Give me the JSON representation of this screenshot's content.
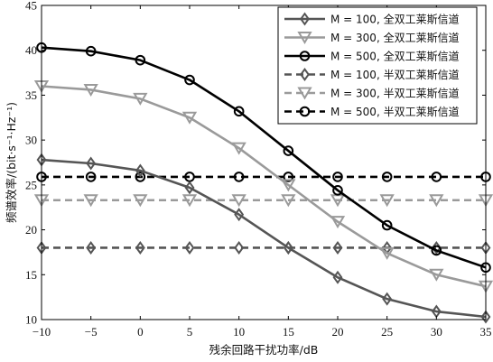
{
  "chart_data": {
    "type": "line",
    "xlabel": "残余回路干扰功率/dB",
    "ylabel": "频谱效率/(bit·s⁻¹·Hz⁻¹)",
    "xlim": [
      -10,
      35
    ],
    "ylim": [
      10,
      45
    ],
    "xticks": [
      "−10",
      "−5",
      "0",
      "5",
      "10",
      "15",
      "20",
      "25",
      "30",
      "35"
    ],
    "yticks": [
      "10",
      "15",
      "20",
      "25",
      "30",
      "35",
      "40",
      "45"
    ],
    "grid": false,
    "legend_position": "top-right",
    "x": [
      -10,
      -5,
      0,
      5,
      10,
      15,
      20,
      25,
      30,
      35
    ],
    "series": [
      {
        "name": "M = 100, 全双工莱斯信道",
        "color": "#555555",
        "dash": "solid",
        "marker": "diamond",
        "values": [
          27.8,
          27.4,
          26.6,
          24.7,
          21.7,
          18.0,
          14.7,
          12.3,
          10.9,
          10.3
        ]
      },
      {
        "name": "M = 300, 全双工莱斯信道",
        "color": "#9a9a9a",
        "dash": "solid",
        "marker": "triangle-down",
        "values": [
          36.0,
          35.6,
          34.6,
          32.5,
          29.1,
          25.0,
          20.9,
          17.4,
          15.0,
          13.7
        ]
      },
      {
        "name": "M = 500, 全双工莱斯信道",
        "color": "#000000",
        "dash": "solid",
        "marker": "circle",
        "values": [
          40.3,
          39.9,
          38.9,
          36.7,
          33.2,
          28.8,
          24.4,
          20.5,
          17.7,
          15.8
        ]
      },
      {
        "name": "M = 100, 半双工莱斯信道",
        "color": "#555555",
        "dash": "dashed",
        "marker": "diamond",
        "values": [
          18.0,
          18.0,
          18.0,
          18.0,
          18.0,
          18.0,
          18.0,
          18.0,
          18.0,
          18.0
        ]
      },
      {
        "name": "M = 300, 半双工莱斯信道",
        "color": "#9a9a9a",
        "dash": "dashed",
        "marker": "triangle-down",
        "values": [
          23.3,
          23.3,
          23.3,
          23.3,
          23.3,
          23.3,
          23.3,
          23.3,
          23.3,
          23.3
        ]
      },
      {
        "name": "M = 500, 半双工莱斯信道",
        "color": "#000000",
        "dash": "dashed",
        "marker": "circle",
        "values": [
          25.9,
          25.9,
          25.9,
          25.9,
          25.9,
          25.9,
          25.9,
          25.9,
          25.9,
          25.9
        ]
      }
    ]
  }
}
